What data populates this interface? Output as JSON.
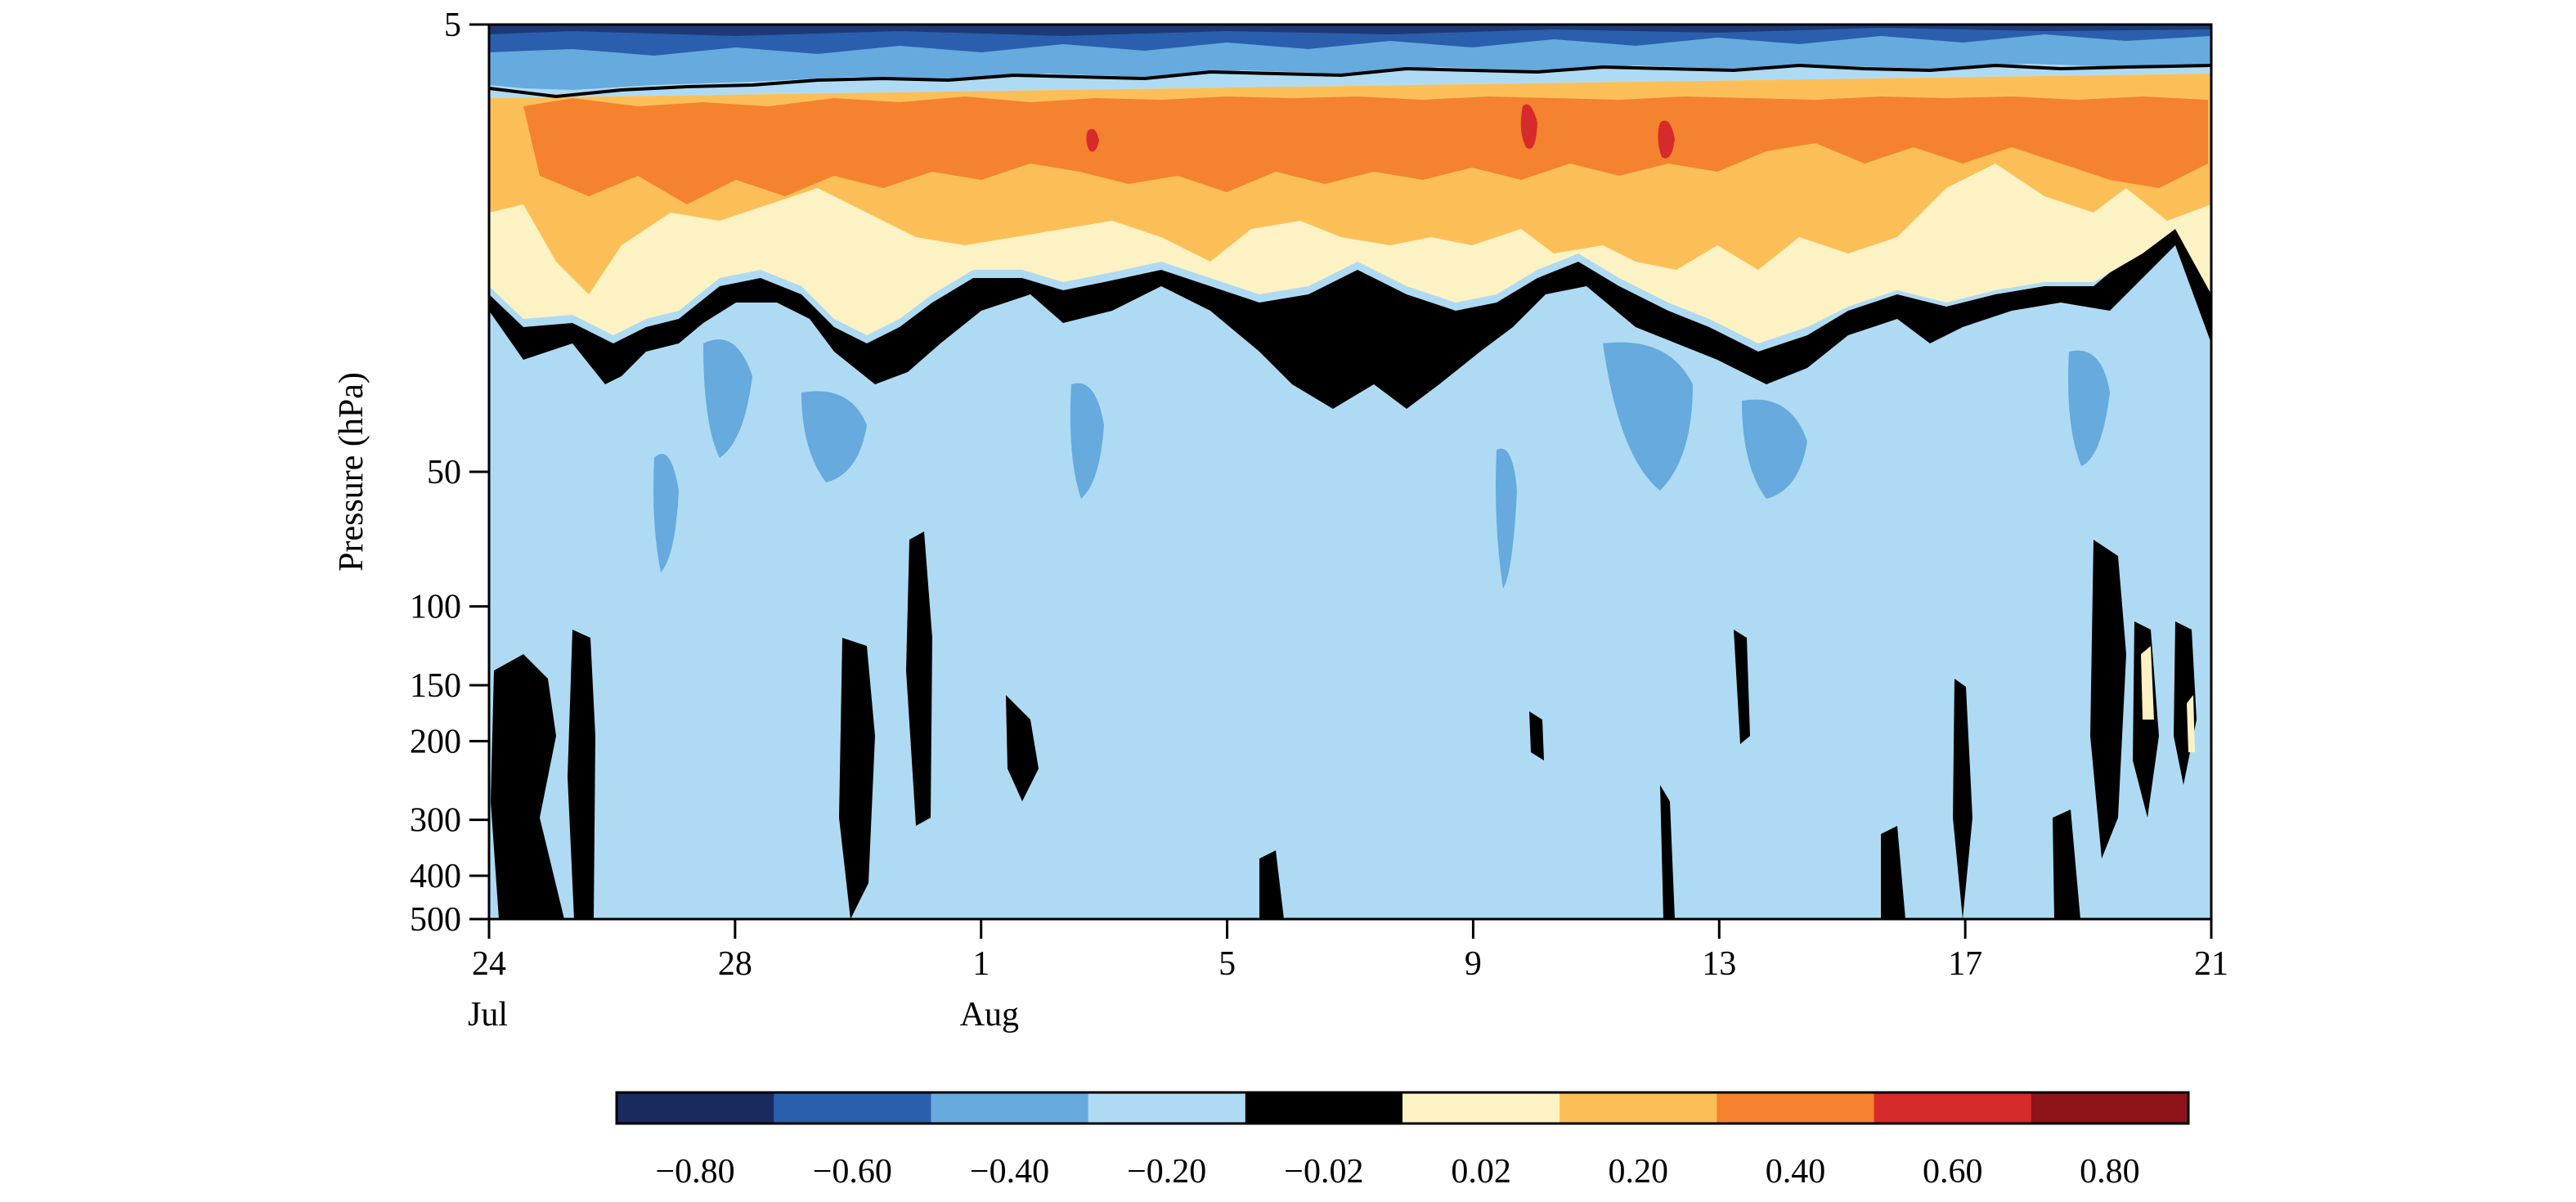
{
  "chart_data": {
    "type": "heatmap",
    "title": "",
    "ylabel": "Pressure (hPa)",
    "xlabel": "",
    "y_scale": "log",
    "ylim": [
      500,
      5
    ],
    "x_range": [
      "Jul 24",
      "Aug 21"
    ],
    "x_ticks": [
      {
        "day": 24,
        "month": "Jul",
        "label": "24",
        "sub": "Jul"
      },
      {
        "day": 28,
        "month": "Jul",
        "label": "28",
        "sub": ""
      },
      {
        "day": 1,
        "month": "Aug",
        "label": "1",
        "sub": "Aug"
      },
      {
        "day": 5,
        "month": "Aug",
        "label": "5",
        "sub": ""
      },
      {
        "day": 9,
        "month": "Aug",
        "label": "9",
        "sub": ""
      },
      {
        "day": 13,
        "month": "Aug",
        "label": "13",
        "sub": ""
      },
      {
        "day": 17,
        "month": "Aug",
        "label": "17",
        "sub": ""
      },
      {
        "day": 21,
        "month": "Aug",
        "label": "21",
        "sub": ""
      }
    ],
    "y_ticks": [
      5,
      50,
      100,
      150,
      200,
      300,
      400,
      500
    ],
    "colorbar": {
      "levels": [
        -0.8,
        -0.6,
        -0.4,
        -0.2,
        -0.02,
        0.02,
        0.2,
        0.4,
        0.6,
        0.8
      ],
      "labels": [
        "−0.80",
        "−0.60",
        "−0.40",
        "−0.20",
        "−0.02",
        "0.02",
        "0.20",
        "0.40",
        "0.60",
        "0.80"
      ],
      "colors": [
        "#1a2a5e",
        "#2a5fad",
        "#66aade",
        "#aedbf3",
        "#000000",
        "#fdf2c4",
        "#fcbf58",
        "#f5822e",
        "#d72a2a",
        "#8e1419"
      ]
    },
    "grid": false
  }
}
